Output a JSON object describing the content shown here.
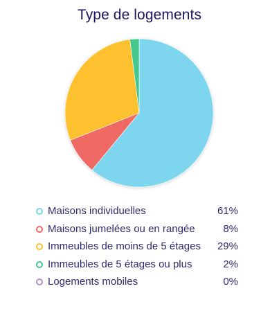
{
  "chart_data": {
    "type": "pie",
    "title": "Type de logements",
    "unit": "%",
    "legend_position": "bottom",
    "slices": [
      {
        "label": "Maisons individuelles",
        "value": 61,
        "value_label": "61%",
        "color": "#7dd6ee"
      },
      {
        "label": "Maisons jumelées ou en rangée",
        "value": 8,
        "value_label": "8%",
        "color": "#ef6a65"
      },
      {
        "label": "Immeubles de moins de 5 étages",
        "value": 29,
        "value_label": "29%",
        "color": "#fdc02f"
      },
      {
        "label": "Immeubles de 5 étages ou plus",
        "value": 2,
        "value_label": "2%",
        "color": "#45c78d"
      },
      {
        "label": "Logements mobiles",
        "value": 0,
        "value_label": "0%",
        "color": "#b28fce"
      }
    ]
  }
}
